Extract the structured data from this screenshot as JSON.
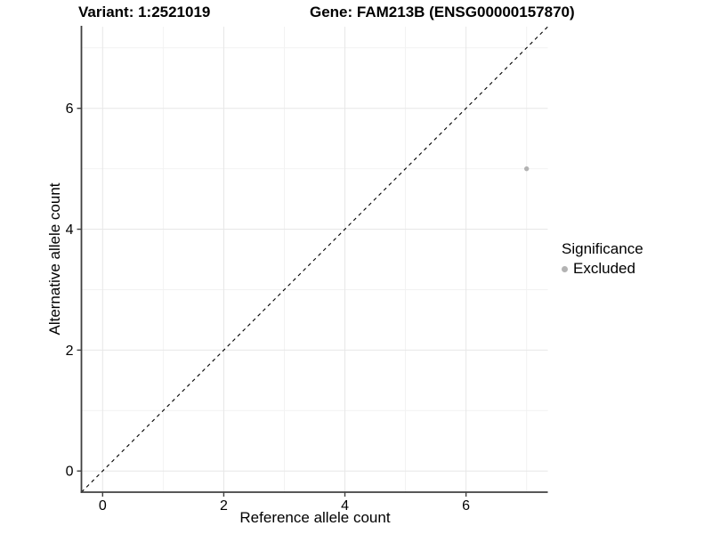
{
  "header": {
    "title_left": "Variant: 1:2521019",
    "title_right": "Gene: FAM213B (ENSG00000157870)"
  },
  "chart_data": {
    "type": "scatter",
    "xlabel": "Reference allele count",
    "ylabel": "Alternative allele count",
    "xlim": [
      -0.35,
      7.35
    ],
    "ylim": [
      -0.35,
      7.35
    ],
    "xticks": [
      0,
      2,
      4,
      6
    ],
    "yticks": [
      0,
      2,
      4,
      6
    ],
    "minor_xticks": [
      1,
      3,
      5,
      7
    ],
    "minor_yticks": [
      1,
      3,
      5,
      7
    ],
    "grid": "on",
    "points": [
      {
        "x": 7,
        "y": 5,
        "series": "Excluded"
      }
    ],
    "reference_line": {
      "type": "identity",
      "style": "dashed",
      "from": [
        -0.35,
        -0.35
      ],
      "to": [
        7.35,
        7.35
      ],
      "color": "#000000"
    },
    "legend": {
      "title": "Significance",
      "position": "right",
      "entries": [
        {
          "label": "Excluded",
          "color": "#b3b3b3"
        }
      ]
    },
    "colors": {
      "point": "#b3b3b3",
      "grid_major": "#e7e7e7",
      "grid_minor": "#f2f2f2",
      "axis": "#404040"
    }
  }
}
